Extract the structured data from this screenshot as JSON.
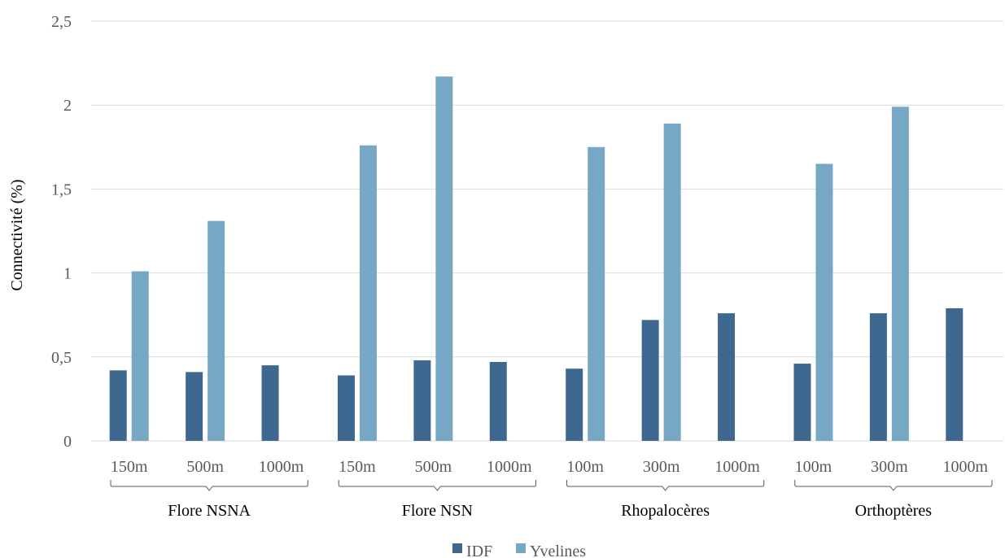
{
  "chart_data": {
    "type": "bar",
    "ylabel": "Connectivité (%)",
    "ylim": [
      0,
      2.5
    ],
    "yticks": [
      "0",
      "0,5",
      "1",
      "1,5",
      "2",
      "2,5"
    ],
    "grid": true,
    "legend_position": "bottom",
    "groups": [
      {
        "name": "Flore NSNA",
        "categories": [
          "150m",
          "500m",
          "1000m"
        ]
      },
      {
        "name": "Flore NSN",
        "categories": [
          "150m",
          "500m",
          "1000m"
        ]
      },
      {
        "name": "Rhopalocères",
        "categories": [
          "100m",
          "300m",
          "1000m"
        ]
      },
      {
        "name": "Orthoptères",
        "categories": [
          "100m",
          "300m",
          "1000m"
        ]
      }
    ],
    "series": [
      {
        "name": "IDF",
        "color": "#3e688f",
        "values": [
          0.42,
          0.41,
          0.45,
          0.39,
          0.48,
          0.47,
          0.43,
          0.72,
          0.76,
          0.46,
          0.76,
          0.79
        ]
      },
      {
        "name": "Yvelines",
        "color": "#76a7c4",
        "values": [
          1.01,
          1.31,
          null,
          1.76,
          2.17,
          null,
          1.75,
          1.89,
          null,
          1.65,
          1.99,
          null
        ]
      }
    ]
  }
}
